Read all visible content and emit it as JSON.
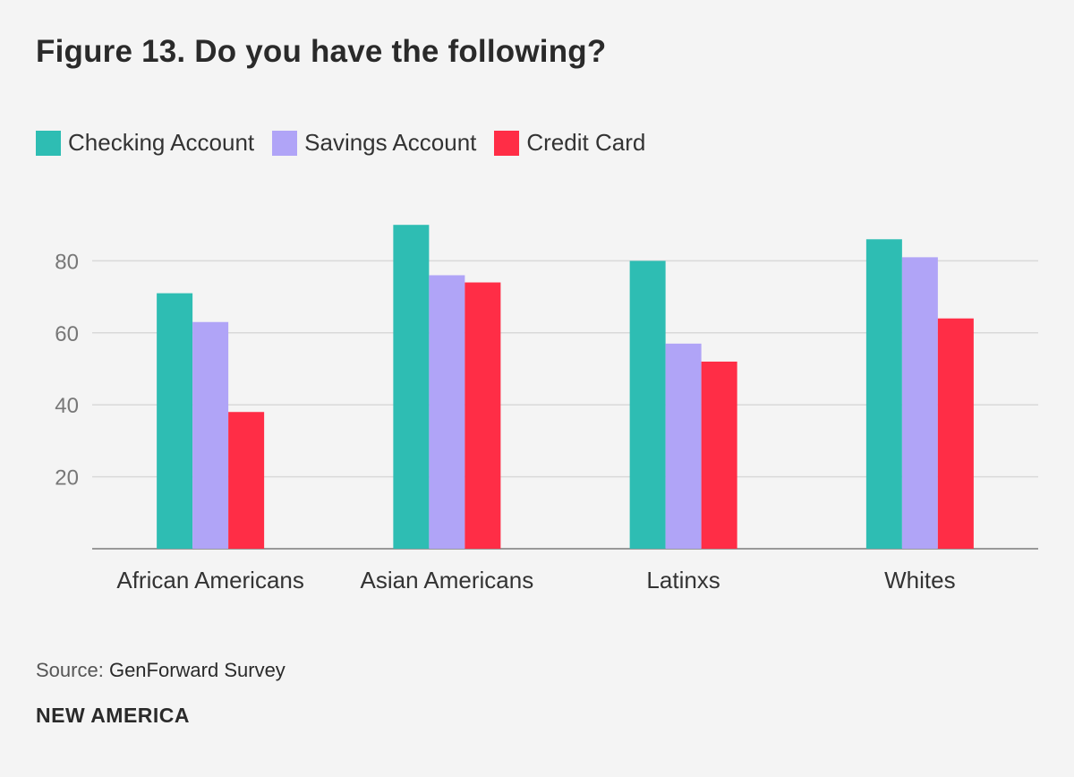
{
  "title": "Figure 13. Do you have the following?",
  "legend": [
    {
      "label": "Checking Account",
      "color": "#2ebdb3"
    },
    {
      "label": "Savings Account",
      "color": "#b0a4f7"
    },
    {
      "label": "Credit Card",
      "color": "#ff2d46"
    }
  ],
  "source_label": "Source:",
  "source_text": "GenForward Survey",
  "brand": "NEW AMERICA",
  "chart_data": {
    "type": "bar",
    "title": "Figure 13. Do you have the following?",
    "xlabel": "",
    "ylabel": "",
    "categories": [
      "African Americans",
      "Asian Americans",
      "Latinxs",
      "Whites"
    ],
    "series": [
      {
        "name": "Checking Account",
        "values": [
          71,
          90,
          80,
          86
        ]
      },
      {
        "name": "Savings Account",
        "values": [
          63,
          76,
          57,
          81
        ]
      },
      {
        "name": "Credit Card",
        "values": [
          38,
          74,
          52,
          64
        ]
      }
    ],
    "ylim": [
      0,
      90
    ],
    "yticks": [
      20,
      40,
      60,
      80
    ],
    "grid": true,
    "legend_position": "top-left"
  }
}
